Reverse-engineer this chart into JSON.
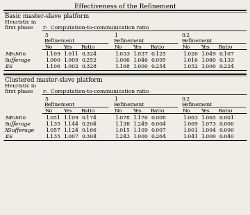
{
  "title": "Effectiveness of the Refinement",
  "bg_color": "#f0ede8",
  "sections": [
    {
      "platform": "Basic master-slave platform",
      "heuristics": [
        "MinMin",
        "Sufferage",
        "IIS"
      ],
      "data": {
        "r5": {
          "MinMin": [
            1.109,
            1.011,
            0.324
          ],
          "Sufferage": [
            1.0,
            1.009,
            0.252
          ],
          "IIS": [
            1.106,
            1.002,
            0.328
          ]
        },
        "r1": {
          "MinMin": [
            1.033,
            1.037,
            0.125
          ],
          "Sufferage": [
            1.006,
            1.046,
            0.095
          ],
          "IIS": [
            1.168,
            1.0,
            0.254
          ]
        },
        "r02": {
          "MinMin": [
            1.026,
            1.049,
            0.167
          ],
          "Sufferage": [
            1.016,
            1.08,
            0.133
          ],
          "IIS": [
            1.052,
            1.0,
            0.224
          ]
        }
      }
    },
    {
      "platform": "Clustered master-slave platform",
      "heuristics": [
        "MinMin",
        "Sufferage",
        "XSufferage",
        "IIS"
      ],
      "data": {
        "r5": {
          "MinMin": [
            1.051,
            1.109,
            0.174
          ],
          "Sufferage": [
            1.135,
            1.144,
            0.204
          ],
          "XSufferage": [
            1.057,
            1.124,
            0.166
          ],
          "IIS": [
            1.135,
            1.007,
            0.304
          ]
        },
        "r1": {
          "MinMin": [
            1.078,
            1.176,
            0.008
          ],
          "Sufferage": [
            1.138,
            1.249,
            0.004
          ],
          "XSufferage": [
            1.015,
            1.109,
            0.007
          ],
          "IIS": [
            1.243,
            1.0,
            0.264
          ]
        },
        "r02": {
          "MinMin": [
            1.063,
            1.065,
            0.001
          ],
          "Sufferage": [
            1.069,
            1.073,
            0.0
          ],
          "XSufferage": [
            1.001,
            1.004,
            0.0
          ],
          "IIS": [
            1.041,
            1.0,
            0.04
          ]
        }
      }
    }
  ]
}
